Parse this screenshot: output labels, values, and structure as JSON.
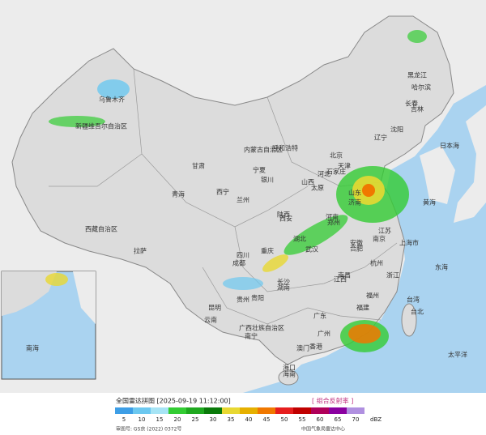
{
  "header": {
    "title": "全国雷达拼图 [2025-09-19 11:12:00]",
    "product": "[ 组合反射率 ]"
  },
  "legend": {
    "unit": "dBZ",
    "values": [
      5,
      10,
      15,
      20,
      25,
      30,
      35,
      40,
      45,
      50,
      55,
      60,
      65,
      70
    ],
    "colors": [
      "#3d9ee6",
      "#6cc8f0",
      "#a6e4f5",
      "#33cc33",
      "#1fa81f",
      "#0a7a0a",
      "#e8d832",
      "#e6b000",
      "#f07800",
      "#e61e1e",
      "#c00000",
      "#b0005a",
      "#8a00a0",
      "#b090e0"
    ]
  },
  "footer": {
    "approval": "审图号: GS京 (2022) 0372号",
    "source": "中国气象局雷达中心"
  },
  "places": [
    "乌鲁木齐",
    "新疆维吾尔自治区",
    "西藏自治区",
    "拉萨",
    "青海",
    "西宁",
    "甘肃",
    "兰州",
    "内蒙古自治区",
    "呼和浩特",
    "宁夏",
    "银川",
    "黑龙江",
    "哈尔滨",
    "吉林",
    "长春",
    "辽宁",
    "沈阳",
    "北京",
    "天津",
    "河北",
    "石家庄",
    "山西",
    "太原",
    "陕西",
    "西安",
    "河南",
    "郑州",
    "山东",
    "济南",
    "江苏",
    "南京",
    "上海市",
    "安徽",
    "合肥",
    "浙江",
    "杭州",
    "湖北",
    "武汉",
    "四川",
    "成都",
    "重庆",
    "湖南",
    "长沙",
    "江西",
    "南昌",
    "贵州",
    "贵阳",
    "云南",
    "昆明",
    "广西壮族自治区",
    "南宁",
    "广东",
    "广州",
    "福建",
    "福州",
    "台湾",
    "台北",
    "香港",
    "澳门",
    "海南",
    "海口",
    "日本海",
    "黄海",
    "东海",
    "太平洋",
    "南海"
  ]
}
